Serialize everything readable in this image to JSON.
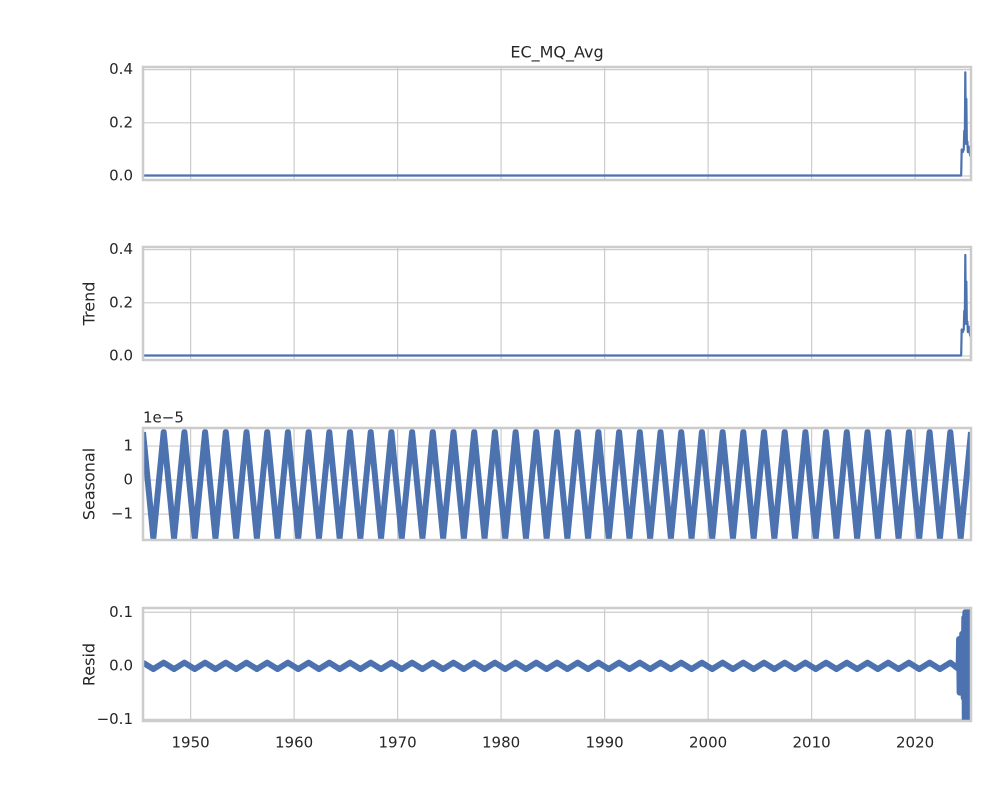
{
  "chart_data": [
    {
      "type": "line",
      "title": "EC_MQ_Avg",
      "color": "#4c72b0",
      "grid": true,
      "xlim": [
        1945.4,
        2025.4
      ],
      "xticks": [
        1950,
        1960,
        1970,
        1980,
        1990,
        2000,
        2010,
        2020
      ],
      "ylim": [
        -0.015,
        0.41
      ],
      "yticks": [
        {
          "value": 0,
          "label": "0.0"
        },
        {
          "value": 0.2,
          "label": "0.2"
        },
        {
          "value": 0.4,
          "label": "0.4"
        }
      ],
      "x": [
        1945.4,
        2024.45,
        2024.5,
        2024.6,
        2024.7,
        2024.75,
        2024.8,
        2024.85,
        2024.9,
        2024.95,
        2025.0,
        2025.05,
        2025.1,
        2025.2,
        2025.3,
        2025.4
      ],
      "values": [
        0.002,
        0.002,
        0.1,
        0.09,
        0.1,
        0.17,
        0.12,
        0.39,
        0.15,
        0.29,
        0.12,
        0.13,
        0.09,
        0.11,
        0.08,
        0.07
      ]
    },
    {
      "type": "line",
      "ylabel": "Trend",
      "color": "#4c72b0",
      "grid": true,
      "xlim": [
        1945.4,
        2025.4
      ],
      "xticks": [
        1950,
        1960,
        1970,
        1980,
        1990,
        2000,
        2010,
        2020
      ],
      "ylim": [
        -0.015,
        0.41
      ],
      "yticks": [
        {
          "value": 0,
          "label": "0.0"
        },
        {
          "value": 0.2,
          "label": "0.2"
        },
        {
          "value": 0.4,
          "label": "0.4"
        }
      ],
      "x": [
        1945.4,
        2024.45,
        2024.5,
        2024.6,
        2024.7,
        2024.75,
        2024.8,
        2024.85,
        2024.9,
        2024.95,
        2025.0,
        2025.05,
        2025.1,
        2025.2,
        2025.3,
        2025.4
      ],
      "values": [
        0.002,
        0.002,
        0.1,
        0.09,
        0.1,
        0.17,
        0.12,
        0.38,
        0.15,
        0.28,
        0.12,
        0.13,
        0.09,
        0.11,
        0.08,
        0.07
      ]
    },
    {
      "type": "line",
      "ylabel": "Seasonal",
      "offset_label": "1e−5",
      "color": "#4c72b0",
      "grid": true,
      "xlim": [
        1945.4,
        2025.4
      ],
      "xticks": [
        1950,
        1960,
        1970,
        1980,
        1990,
        2000,
        2010,
        2020
      ],
      "ylim": [
        -1.76,
        1.53
      ],
      "yticks": [
        {
          "value": -1,
          "label": "−1"
        },
        0,
        1
      ],
      "x": [
        1945.4,
        1946.4,
        1947.4,
        1948.4,
        1949.4,
        1950.4,
        1951.4,
        1952.4,
        1953.4,
        1954.4,
        1955.4,
        1956.4,
        1957.4,
        1958.4,
        1959.4,
        1960.4,
        1961.4,
        1962.4,
        1963.4,
        1964.4,
        1965.4,
        1966.4,
        1967.4,
        1968.4,
        1969.4,
        1970.4,
        1971.4,
        1972.4,
        1973.4,
        1974.4,
        1975.4,
        1976.4,
        1977.4,
        1978.4,
        1979.4,
        1980.4,
        1981.4,
        1982.4,
        1983.4,
        1984.4,
        1985.4,
        1986.4,
        1987.4,
        1988.4,
        1989.4,
        1990.4,
        1991.4,
        1992.4,
        1993.4,
        1994.4,
        1995.4,
        1996.4,
        1997.4,
        1998.4,
        1999.4,
        2000.4,
        2001.4,
        2002.4,
        2003.4,
        2004.4,
        2005.4,
        2006.4,
        2007.4,
        2008.4,
        2009.4,
        2010.4,
        2011.4,
        2012.4,
        2013.4,
        2014.4,
        2015.4,
        2016.4,
        2017.4,
        2018.4,
        2019.4,
        2020.4,
        2021.4,
        2022.4,
        2023.4,
        2024.4,
        2025.4
      ],
      "values": [
        1.41,
        -1.7,
        1.41,
        -1.7,
        1.41,
        -1.7,
        1.41,
        -1.7,
        1.41,
        -1.7,
        1.41,
        -1.7,
        1.41,
        -1.7,
        1.41,
        -1.7,
        1.41,
        -1.7,
        1.41,
        -1.7,
        1.41,
        -1.7,
        1.41,
        -1.7,
        1.41,
        -1.7,
        1.41,
        -1.7,
        1.41,
        -1.7,
        1.41,
        -1.7,
        1.41,
        -1.7,
        1.41,
        -1.7,
        1.41,
        -1.7,
        1.41,
        -1.7,
        1.41,
        -1.7,
        1.41,
        -1.7,
        1.41,
        -1.7,
        1.41,
        -1.7,
        1.41,
        -1.7,
        1.41,
        -1.7,
        1.41,
        -1.7,
        1.41,
        -1.7,
        1.41,
        -1.7,
        1.41,
        -1.7,
        1.41,
        -1.7,
        1.41,
        -1.7,
        1.41,
        -1.7,
        1.41,
        -1.7,
        1.41,
        -1.7,
        1.41,
        -1.7,
        1.41,
        -1.7,
        1.41,
        -1.7,
        1.41,
        -1.7,
        1.41,
        -1.7,
        1.41
      ]
    },
    {
      "type": "line",
      "ylabel": "Resid",
      "color": "#4c72b0",
      "grid": true,
      "xlim": [
        1945.4,
        2025.4
      ],
      "xticks": [
        1950,
        1960,
        1970,
        1980,
        1990,
        2000,
        2010,
        2020
      ],
      "ylim": [
        -0.103,
        0.108
      ],
      "yticks": [
        {
          "value": -0.1,
          "label": "−0.1"
        },
        {
          "value": 0,
          "label": "0.0"
        },
        0.1
      ],
      "x": [
        1945.4,
        1946.4,
        1947.4,
        1948.4,
        1949.4,
        1950.4,
        1951.4,
        1952.4,
        1953.4,
        1954.4,
        1955.4,
        1956.4,
        1957.4,
        1958.4,
        1959.4,
        1960.4,
        1961.4,
        1962.4,
        1963.4,
        1964.4,
        1965.4,
        1966.4,
        1967.4,
        1968.4,
        1969.4,
        1970.4,
        1971.4,
        1972.4,
        1973.4,
        1974.4,
        1975.4,
        1976.4,
        1977.4,
        1978.4,
        1979.4,
        1980.4,
        1981.4,
        1982.4,
        1983.4,
        1984.4,
        1985.4,
        1986.4,
        1987.4,
        1988.4,
        1989.4,
        1990.4,
        1991.4,
        1992.4,
        1993.4,
        1994.4,
        1995.4,
        1996.4,
        1997.4,
        1998.4,
        1999.4,
        2000.4,
        2001.4,
        2002.4,
        2003.4,
        2004.4,
        2005.4,
        2006.4,
        2007.4,
        2008.4,
        2009.4,
        2010.4,
        2011.4,
        2012.4,
        2013.4,
        2014.4,
        2015.4,
        2016.4,
        2017.4,
        2018.4,
        2019.4,
        2020.4,
        2021.4,
        2022.4,
        2023.4,
        2024.2,
        2024.25,
        2024.3,
        2024.35,
        2024.4,
        2024.45,
        2024.5,
        2024.55,
        2024.6,
        2024.65,
        2024.7,
        2024.75,
        2024.8,
        2024.85,
        2024.9,
        2024.95,
        2025.0,
        2025.05,
        2025.1,
        2025.15,
        2025.2,
        2025.25,
        2025.3,
        2025.35,
        2025.4
      ],
      "values": [
        0.006,
        -0.006,
        0.006,
        -0.006,
        0.006,
        -0.006,
        0.006,
        -0.006,
        0.006,
        -0.006,
        0.006,
        -0.006,
        0.006,
        -0.006,
        0.006,
        -0.006,
        0.006,
        -0.006,
        0.006,
        -0.006,
        0.006,
        -0.006,
        0.006,
        -0.006,
        0.006,
        -0.006,
        0.006,
        -0.006,
        0.006,
        -0.006,
        0.006,
        -0.006,
        0.006,
        -0.006,
        0.006,
        -0.006,
        0.006,
        -0.006,
        0.006,
        -0.006,
        0.006,
        -0.006,
        0.006,
        -0.006,
        0.006,
        -0.006,
        0.006,
        -0.006,
        0.006,
        -0.006,
        0.006,
        -0.006,
        0.006,
        -0.006,
        0.006,
        -0.006,
        0.006,
        -0.006,
        0.006,
        -0.006,
        0.006,
        -0.006,
        0.006,
        -0.006,
        0.006,
        -0.006,
        0.006,
        -0.006,
        0.006,
        -0.006,
        0.006,
        -0.006,
        0.006,
        -0.006,
        0.006,
        -0.006,
        0.006,
        -0.006,
        0.006,
        -0.006,
        0.05,
        -0.05,
        0.05,
        -0.05,
        0.05,
        -0.05,
        0.06,
        -0.05,
        0.05,
        -0.06,
        0.09,
        -0.1,
        0.1,
        -0.1,
        0.1,
        -0.09,
        0.1,
        -0.1,
        0.09,
        -0.1,
        0.1,
        -0.08,
        0.08,
        -0.07
      ]
    }
  ]
}
